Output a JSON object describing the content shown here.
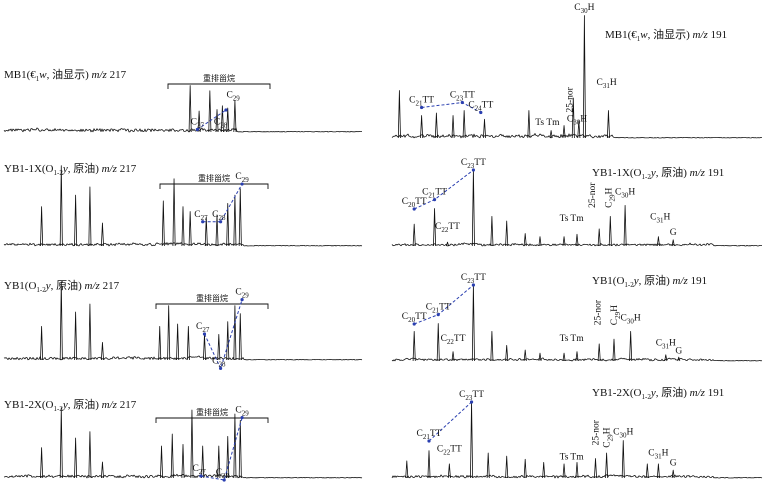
{
  "chart_data": [
    {
      "type": "line",
      "title": "MB1(€₁w, 油显示) m/z 217",
      "title_parts": [
        {
          "t": "MB1(€"
        },
        {
          "t": "1",
          "sub": true
        },
        {
          "t": "w",
          "italic": true
        },
        {
          "t": ", 油显示)  "
        },
        {
          "t": "m/z",
          "italic": true
        },
        {
          "t": " 217"
        }
      ],
      "bracket_label": "重排甾烷",
      "labels": [
        {
          "main": "C",
          "sub": "27",
          "rt": 0.54,
          "rel": 0.06
        },
        {
          "main": "C",
          "sub": "28",
          "rt": 0.605,
          "rel": 0.06
        },
        {
          "main": "C",
          "sub": "29",
          "rt": 0.64,
          "rel": 0.42
        }
      ],
      "peaks": [
        {
          "rt": 0.52,
          "rel": 0.62
        },
        {
          "rt": 0.545,
          "rel": 0.28
        },
        {
          "rt": 0.575,
          "rel": 0.55
        },
        {
          "rt": 0.595,
          "rel": 0.3
        },
        {
          "rt": 0.61,
          "rel": 0.35
        },
        {
          "rt": 0.625,
          "rel": 0.32
        },
        {
          "rt": 0.645,
          "rel": 0.42
        }
      ]
    },
    {
      "type": "line",
      "title": "YB1-1X(O₁₋₂y, 原油) m/z 217",
      "title_parts": [
        {
          "t": "YB1-1X(O"
        },
        {
          "t": "1-2",
          "sub": true
        },
        {
          "t": "y",
          "italic": true
        },
        {
          "t": ", 原油)  "
        },
        {
          "t": "m/z",
          "italic": true
        },
        {
          "t": " 217"
        }
      ],
      "bracket_label": "重排甾烷",
      "labels": [
        {
          "main": "C",
          "sub": "27",
          "rt": 0.55,
          "rel": 0.32
        },
        {
          "main": "C",
          "sub": "28",
          "rt": 0.6,
          "rel": 0.32
        },
        {
          "main": "C",
          "sub": "29",
          "rt": 0.665,
          "rel": 0.78
        }
      ],
      "peaks": [
        {
          "rt": 0.105,
          "rel": 0.48
        },
        {
          "rt": 0.16,
          "rel": 0.98
        },
        {
          "rt": 0.2,
          "rel": 0.62
        },
        {
          "rt": 0.24,
          "rel": 0.72
        },
        {
          "rt": 0.275,
          "rel": 0.28
        },
        {
          "rt": 0.445,
          "rel": 0.55
        },
        {
          "rt": 0.475,
          "rel": 0.82
        },
        {
          "rt": 0.5,
          "rel": 0.48
        },
        {
          "rt": 0.52,
          "rel": 0.42
        },
        {
          "rt": 0.565,
          "rel": 0.35
        },
        {
          "rt": 0.595,
          "rel": 0.38
        },
        {
          "rt": 0.625,
          "rel": 0.52
        },
        {
          "rt": 0.645,
          "rel": 0.62
        },
        {
          "rt": 0.66,
          "rel": 0.7
        }
      ]
    },
    {
      "type": "line",
      "title": "YB1(O₁₋₂y, 原油) m/z 217",
      "title_parts": [
        {
          "t": "YB1(O"
        },
        {
          "t": "1-2",
          "sub": true
        },
        {
          "t": "y",
          "italic": true
        },
        {
          "t": ", 原油)  "
        },
        {
          "t": "m/z",
          "italic": true
        },
        {
          "t": " 217"
        }
      ],
      "bracket_label": "重排甾烷",
      "labels": [
        {
          "main": "C",
          "sub": "27",
          "rt": 0.555,
          "rel": 0.35
        },
        {
          "main": "C",
          "sub": "28",
          "rt": 0.6,
          "rel": -0.08
        },
        {
          "main": "C",
          "sub": "29",
          "rt": 0.665,
          "rel": 0.78
        }
      ],
      "peaks": [
        {
          "rt": 0.105,
          "rel": 0.42
        },
        {
          "rt": 0.16,
          "rel": 0.98
        },
        {
          "rt": 0.2,
          "rel": 0.6
        },
        {
          "rt": 0.24,
          "rel": 0.7
        },
        {
          "rt": 0.275,
          "rel": 0.22
        },
        {
          "rt": 0.435,
          "rel": 0.42
        },
        {
          "rt": 0.46,
          "rel": 0.68
        },
        {
          "rt": 0.485,
          "rel": 0.45
        },
        {
          "rt": 0.515,
          "rel": 0.42
        },
        {
          "rt": 0.56,
          "rel": 0.32
        },
        {
          "rt": 0.6,
          "rel": 0.32
        },
        {
          "rt": 0.625,
          "rel": 0.48
        },
        {
          "rt": 0.645,
          "rel": 0.68
        },
        {
          "rt": 0.66,
          "rel": 0.58
        }
      ]
    },
    {
      "type": "line",
      "title": "YB1-2X(O₁₋₂y, 原油) m/z 217",
      "title_parts": [
        {
          "t": "YB1-2X(O"
        },
        {
          "t": "1-2",
          "sub": true
        },
        {
          "t": "y",
          "italic": true
        },
        {
          "t": ", 原油)  "
        },
        {
          "t": "m/z",
          "italic": true
        },
        {
          "t": " 217"
        }
      ],
      "bracket_label": "重排甾烷",
      "labels": [
        {
          "main": "C",
          "sub": "27",
          "rt": 0.545,
          "rel": 0.05
        },
        {
          "main": "C",
          "sub": "28",
          "rt": 0.61,
          "rel": 0.0
        },
        {
          "main": "C",
          "sub": "29",
          "rt": 0.665,
          "rel": 0.78
        }
      ],
      "peaks": [
        {
          "rt": 0.105,
          "rel": 0.38
        },
        {
          "rt": 0.16,
          "rel": 0.88
        },
        {
          "rt": 0.2,
          "rel": 0.5
        },
        {
          "rt": 0.24,
          "rel": 0.58
        },
        {
          "rt": 0.275,
          "rel": 0.2
        },
        {
          "rt": 0.44,
          "rel": 0.4
        },
        {
          "rt": 0.47,
          "rel": 0.55
        },
        {
          "rt": 0.5,
          "rel": 0.42
        },
        {
          "rt": 0.525,
          "rel": 0.85
        },
        {
          "rt": 0.555,
          "rel": 0.4
        },
        {
          "rt": 0.6,
          "rel": 0.4
        },
        {
          "rt": 0.625,
          "rel": 0.52
        },
        {
          "rt": 0.645,
          "rel": 0.8
        },
        {
          "rt": 0.66,
          "rel": 0.72
        }
      ]
    },
    {
      "type": "line",
      "title": "MB1(€₁w, 油显示) m/z 191",
      "title_parts": [
        {
          "t": "MB1(€"
        },
        {
          "t": "1",
          "sub": true
        },
        {
          "t": "w",
          "italic": true
        },
        {
          "t": ", 油显示)  "
        },
        {
          "t": "m/z",
          "italic": true
        },
        {
          "t": " 191"
        }
      ],
      "labels": [
        {
          "main": "C",
          "sub": "30",
          "after": "H",
          "rt": 0.52,
          "rel": 1.0
        },
        {
          "main": "C",
          "sub": "31",
          "after": "H",
          "rt": 0.58,
          "rel": 0.4
        },
        {
          "main": "C",
          "sub": "21",
          "after": "TT",
          "rt": 0.08,
          "rel": 0.26
        },
        {
          "main": "C",
          "sub": "23",
          "after": "TT",
          "rt": 0.19,
          "rel": 0.3
        },
        {
          "main": "C",
          "sub": "24",
          "after": "TT",
          "rt": 0.24,
          "rel": 0.22
        },
        {
          "main": "Ts Tm",
          "rt": 0.42,
          "rel": 0.08
        },
        {
          "main": "25-nor",
          "rt": 0.48,
          "rel": 0.18,
          "vertical": true
        },
        {
          "main": "C",
          "sub": "30",
          "after": "H",
          "rt": 0.5,
          "rel": 0.11
        }
      ],
      "peaks": [
        {
          "rt": 0.02,
          "rel": 0.38
        },
        {
          "rt": 0.08,
          "rel": 0.18
        },
        {
          "rt": 0.12,
          "rel": 0.2
        },
        {
          "rt": 0.165,
          "rel": 0.18
        },
        {
          "rt": 0.195,
          "rel": 0.22
        },
        {
          "rt": 0.25,
          "rel": 0.15
        },
        {
          "rt": 0.37,
          "rel": 0.22
        },
        {
          "rt": 0.43,
          "rel": 0.06
        },
        {
          "rt": 0.465,
          "rel": 0.1
        },
        {
          "rt": 0.49,
          "rel": 0.32
        },
        {
          "rt": 0.505,
          "rel": 0.14
        },
        {
          "rt": 0.52,
          "rel": 0.98
        },
        {
          "rt": 0.585,
          "rel": 0.22
        }
      ]
    },
    {
      "type": "line",
      "title": "YB1-1X(O₁₋₂y, 原油) m/z 191",
      "title_parts": [
        {
          "t": "YB1-1X(O"
        },
        {
          "t": "1-2",
          "sub": true
        },
        {
          "t": "y",
          "italic": true
        },
        {
          "t": ", 原油)  "
        },
        {
          "t": "m/z",
          "italic": true
        },
        {
          "t": " 191"
        }
      ],
      "labels": [
        {
          "main": "C",
          "sub": "20",
          "after": "TT",
          "rt": 0.06,
          "rel": 0.5
        },
        {
          "main": "C",
          "sub": "21",
          "after": "TT",
          "rt": 0.115,
          "rel": 0.62
        },
        {
          "main": "C",
          "sub": "22",
          "after": "TT",
          "rt": 0.15,
          "rel": 0.18
        },
        {
          "main": "C",
          "sub": "23",
          "after": "TT",
          "rt": 0.22,
          "rel": 1.0
        },
        {
          "main": "Ts",
          "rt": 0.465,
          "rel": 0.28
        },
        {
          "main": "Tm",
          "rt": 0.5,
          "rel": 0.28
        },
        {
          "main": "25-nor",
          "rt": 0.54,
          "rel": 0.45,
          "vertical": true
        },
        {
          "main": "C",
          "sub": "29",
          "after": "H",
          "rt": 0.585,
          "rel": 0.45,
          "vertical": true
        },
        {
          "main": "C",
          "sub": "30",
          "after": "H",
          "rt": 0.63,
          "rel": 0.62
        },
        {
          "main": "C",
          "sub": "31",
          "after": "H",
          "rt": 0.725,
          "rel": 0.3
        },
        {
          "main": "G",
          "rt": 0.76,
          "rel": 0.1
        }
      ],
      "peaks": [
        {
          "rt": 0.06,
          "rel": 0.28
        },
        {
          "rt": 0.115,
          "rel": 0.48
        },
        {
          "rt": 0.15,
          "rel": 0.05
        },
        {
          "rt": 0.22,
          "rel": 0.98
        },
        {
          "rt": 0.27,
          "rel": 0.38
        },
        {
          "rt": 0.31,
          "rel": 0.32
        },
        {
          "rt": 0.36,
          "rel": 0.16
        },
        {
          "rt": 0.4,
          "rel": 0.12
        },
        {
          "rt": 0.465,
          "rel": 0.12
        },
        {
          "rt": 0.5,
          "rel": 0.15
        },
        {
          "rt": 0.56,
          "rel": 0.22
        },
        {
          "rt": 0.59,
          "rel": 0.38
        },
        {
          "rt": 0.63,
          "rel": 0.52
        },
        {
          "rt": 0.72,
          "rel": 0.12
        },
        {
          "rt": 0.76,
          "rel": 0.08
        }
      ]
    },
    {
      "type": "line",
      "title": "YB1(O₁₋₂y, 原油) m/z 191",
      "title_parts": [
        {
          "t": "YB1(O"
        },
        {
          "t": "1-2",
          "sub": true
        },
        {
          "t": "y",
          "italic": true
        },
        {
          "t": ", 原油)  "
        },
        {
          "t": "m/z",
          "italic": true
        },
        {
          "t": " 191"
        }
      ],
      "labels": [
        {
          "main": "C",
          "sub": "20",
          "after": "TT",
          "rt": 0.06,
          "rel": 0.5
        },
        {
          "main": "C",
          "sub": "21",
          "after": "TT",
          "rt": 0.125,
          "rel": 0.62
        },
        {
          "main": "C",
          "sub": "22",
          "after": "TT",
          "rt": 0.165,
          "rel": 0.22
        },
        {
          "main": "C",
          "sub": "23",
          "after": "TT",
          "rt": 0.22,
          "rel": 1.0
        },
        {
          "main": "Ts",
          "rt": 0.465,
          "rel": 0.22
        },
        {
          "main": "Tm",
          "rt": 0.5,
          "rel": 0.22
        },
        {
          "main": "25-nor",
          "rt": 0.555,
          "rel": 0.42,
          "vertical": true
        },
        {
          "main": "C",
          "sub": "29",
          "after": "H",
          "rt": 0.6,
          "rel": 0.42,
          "vertical": true
        },
        {
          "main": "C",
          "sub": "30",
          "after": "H",
          "rt": 0.645,
          "rel": 0.48
        },
        {
          "main": "C",
          "sub": "31",
          "after": "H",
          "rt": 0.74,
          "rel": 0.16
        },
        {
          "main": "G",
          "rt": 0.775,
          "rel": 0.06
        }
      ],
      "peaks": [
        {
          "rt": 0.06,
          "rel": 0.38
        },
        {
          "rt": 0.125,
          "rel": 0.48
        },
        {
          "rt": 0.165,
          "rel": 0.12
        },
        {
          "rt": 0.22,
          "rel": 0.98
        },
        {
          "rt": 0.27,
          "rel": 0.38
        },
        {
          "rt": 0.31,
          "rel": 0.2
        },
        {
          "rt": 0.36,
          "rel": 0.14
        },
        {
          "rt": 0.4,
          "rel": 0.1
        },
        {
          "rt": 0.465,
          "rel": 0.1
        },
        {
          "rt": 0.5,
          "rel": 0.12
        },
        {
          "rt": 0.56,
          "rel": 0.22
        },
        {
          "rt": 0.6,
          "rel": 0.28
        },
        {
          "rt": 0.645,
          "rel": 0.38
        },
        {
          "rt": 0.74,
          "rel": 0.08
        },
        {
          "rt": 0.775,
          "rel": 0.05
        }
      ]
    },
    {
      "type": "line",
      "title": "YB1-2X(O₁₋₂y, 原油) m/z 191",
      "title_parts": [
        {
          "t": "YB1-2X(O"
        },
        {
          "t": "1-2",
          "sub": true
        },
        {
          "t": "y",
          "italic": true
        },
        {
          "t": ", 原油)  "
        },
        {
          "t": "m/z",
          "italic": true
        },
        {
          "t": " 191"
        }
      ],
      "labels": [
        {
          "main": "C",
          "sub": "21",
          "after": "TT",
          "rt": 0.1,
          "rel": 0.5
        },
        {
          "main": "C",
          "sub": "22",
          "after": "TT",
          "rt": 0.155,
          "rel": 0.3
        },
        {
          "main": "C",
          "sub": "23",
          "after": "TT",
          "rt": 0.215,
          "rel": 1.0
        },
        {
          "main": "Ts",
          "rt": 0.465,
          "rel": 0.2
        },
        {
          "main": "Tm",
          "rt": 0.5,
          "rel": 0.2
        },
        {
          "main": "25-nor",
          "rt": 0.55,
          "rel": 0.38,
          "vertical": true
        },
        {
          "main": "C",
          "sub": "29",
          "after": "H",
          "rt": 0.58,
          "rel": 0.35,
          "vertical": true
        },
        {
          "main": "C",
          "sub": "30",
          "after": "H",
          "rt": 0.625,
          "rel": 0.52
        },
        {
          "main": "C",
          "sub": "31",
          "after": "H",
          "rt": 0.72,
          "rel": 0.25
        },
        {
          "main": "G",
          "rt": 0.76,
          "rel": 0.12
        }
      ],
      "peaks": [
        {
          "rt": 0.04,
          "rel": 0.22
        },
        {
          "rt": 0.1,
          "rel": 0.35
        },
        {
          "rt": 0.155,
          "rel": 0.18
        },
        {
          "rt": 0.215,
          "rel": 0.98
        },
        {
          "rt": 0.26,
          "rel": 0.32
        },
        {
          "rt": 0.31,
          "rel": 0.28
        },
        {
          "rt": 0.36,
          "rel": 0.24
        },
        {
          "rt": 0.41,
          "rel": 0.2
        },
        {
          "rt": 0.465,
          "rel": 0.18
        },
        {
          "rt": 0.5,
          "rel": 0.2
        },
        {
          "rt": 0.55,
          "rel": 0.25
        },
        {
          "rt": 0.58,
          "rel": 0.32
        },
        {
          "rt": 0.625,
          "rel": 0.48
        },
        {
          "rt": 0.69,
          "rel": 0.18
        },
        {
          "rt": 0.72,
          "rel": 0.18
        },
        {
          "rt": 0.76,
          "rel": 0.1
        }
      ]
    }
  ]
}
